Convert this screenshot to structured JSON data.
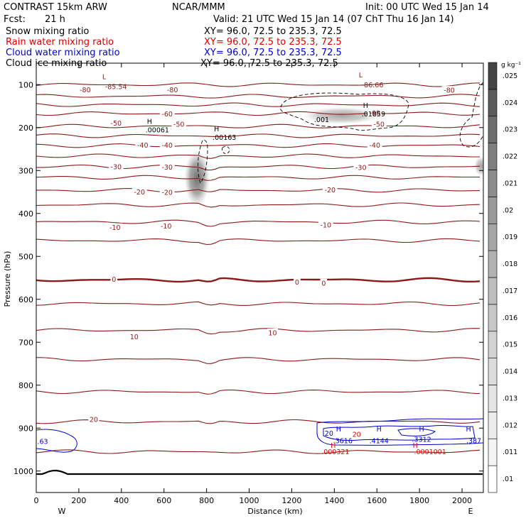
{
  "header": {
    "model": "CONTRAST 15km ARW",
    "org": "NCAR/MMM",
    "init": "Init: 00 UTC Wed 15 Jan 14",
    "fcst_label": "Fcst:",
    "fcst_value": "21 h",
    "valid": "Valid: 21 UTC Wed 15 Jan 14 (07 ChT Thu 16 Jan 14)",
    "fields": [
      {
        "name": "Snow mixing ratio",
        "xy": "XY=  96.0, 72.5 to 235.3, 72.5",
        "color": "#000000"
      },
      {
        "name": "Rain water mixing ratio",
        "xy": "XY=  96.0, 72.5 to 235.3, 72.5",
        "color": "#e00000"
      },
      {
        "name": "Cloud water mixing ratio",
        "xy": "XY=  96.0, 72.5 to 235.3, 72.5",
        "color": "#0000d0"
      },
      {
        "name": "Cloud ice mixing ratio",
        "xy": "XY=  96.0, 72.5 to 235.3, 72.5",
        "color": "#000000"
      }
    ]
  },
  "chart_data": {
    "type": "cross-section contour + shaded",
    "xlabel": "Distance (km)",
    "ylabel": "Pressure (hPa)",
    "xlim": [
      0,
      2100
    ],
    "ylim": [
      1050,
      50
    ],
    "x_ticks": [
      0,
      200,
      400,
      600,
      800,
      1000,
      1200,
      1400,
      1600,
      1800,
      2000
    ],
    "y_ticks": [
      100,
      200,
      300,
      400,
      500,
      600,
      700,
      800,
      900,
      1000
    ],
    "x_end_labels": {
      "left": "W",
      "right": "E"
    },
    "colorbar": {
      "unit": "g kg⁻¹",
      "levels": [
        ".01",
        ".011",
        ".012",
        ".013",
        ".014",
        ".015",
        ".016",
        ".017",
        ".018",
        ".019",
        ".02",
        ".021",
        ".022",
        ".023",
        ".024",
        ".025"
      ],
      "colors": [
        "#ffffff",
        "#f4f4f4",
        "#ececec",
        "#e4e4e4",
        "#dcdcdc",
        "#d2d2d2",
        "#c8c8c8",
        "#bebebe",
        "#b2b2b2",
        "#a6a6a6",
        "#9a9a9a",
        "#8c8c8c",
        "#7e7e7e",
        "#6e6e6e",
        "#5a5a5a",
        "#444444"
      ]
    },
    "temperature_contours": {
      "color": "#8b1a1a",
      "interval_c": 5,
      "isotherms": [
        {
          "t": -85,
          "p": 100
        },
        {
          "t": -80,
          "p": 127
        },
        {
          "t": -70,
          "p": 147
        },
        {
          "t": -60,
          "p": 167
        },
        {
          "t": -50,
          "p": 197
        },
        {
          "t": -45,
          "p": 219
        },
        {
          "t": -40,
          "p": 242
        },
        {
          "t": -35,
          "p": 266
        },
        {
          "t": -30,
          "p": 291
        },
        {
          "t": -25,
          "p": 316
        },
        {
          "t": -20,
          "p": 346
        },
        {
          "t": -15,
          "p": 380
        },
        {
          "t": -10,
          "p": 420
        },
        {
          "t": -5,
          "p": 463
        },
        {
          "t": 0,
          "p": 555
        },
        {
          "t": 5,
          "p": 610
        },
        {
          "t": 10,
          "p": 672
        },
        {
          "t": 15,
          "p": 740
        },
        {
          "t": 20,
          "p": 815
        },
        {
          "t": 25,
          "p": 885
        },
        {
          "t": 30,
          "p": 955
        }
      ],
      "labels": [
        {
          "text": "-80",
          "x": 230,
          "p": 112
        },
        {
          "text": "-80",
          "x": 640,
          "p": 112
        },
        {
          "text": "-80",
          "x": 1940,
          "p": 113
        },
        {
          "text": "-60",
          "x": 615,
          "p": 168
        },
        {
          "text": "-60",
          "x": 1590,
          "p": 166
        },
        {
          "text": "-50",
          "x": 375,
          "p": 190
        },
        {
          "text": "-50",
          "x": 670,
          "p": 192
        },
        {
          "text": "-50",
          "x": 1610,
          "p": 192
        },
        {
          "text": "-40",
          "x": 500,
          "p": 241
        },
        {
          "text": "-40",
          "x": 615,
          "p": 241
        },
        {
          "text": "-40",
          "x": 1590,
          "p": 241
        },
        {
          "text": "-30",
          "x": 375,
          "p": 291
        },
        {
          "text": "-30",
          "x": 615,
          "p": 292
        },
        {
          "text": "-30",
          "x": 1525,
          "p": 293
        },
        {
          "text": "-20",
          "x": 485,
          "p": 350
        },
        {
          "text": "-20",
          "x": 615,
          "p": 351
        },
        {
          "text": "-20",
          "x": 1380,
          "p": 345
        },
        {
          "text": "-10",
          "x": 370,
          "p": 433
        },
        {
          "text": "-10",
          "x": 610,
          "p": 429
        },
        {
          "text": "-10",
          "x": 1360,
          "p": 427
        },
        {
          "text": "0",
          "x": 365,
          "p": 553
        },
        {
          "text": "0",
          "x": 1225,
          "p": 560
        },
        {
          "text": "0",
          "x": 1350,
          "p": 562
        },
        {
          "text": "10",
          "x": 460,
          "p": 687
        },
        {
          "text": "10",
          "x": 1110,
          "p": 678
        },
        {
          "text": "20",
          "x": 270,
          "p": 880
        }
      ],
      "extrema": [
        {
          "kind": "L",
          "x": 350,
          "p": 82,
          "value": "-85.54"
        },
        {
          "kind": "L",
          "x": 1555,
          "p": 78,
          "value": "-86.66"
        }
      ]
    },
    "ice_maxima": [
      {
        "kind": "H",
        "x": 530,
        "p": 196,
        "value": ".00061"
      },
      {
        "kind": "H",
        "x": 845,
        "p": 214,
        "value": ".00163"
      },
      {
        "kind": "H",
        "x": 1545,
        "p": 159,
        "value": ".01859"
      },
      {
        "text": ".001",
        "x": 1305,
        "p": 187
      }
    ],
    "snow_shading": [
      {
        "x": 755,
        "p": 318,
        "rx": 18,
        "rp": 40,
        "intensity": "medium"
      },
      {
        "x": 1435,
        "p": 172,
        "rx": 55,
        "rp": 12,
        "intensity": "light"
      },
      {
        "x": 2090,
        "p": 290,
        "rx": 10,
        "rp": 14,
        "intensity": "light"
      }
    ],
    "cloud_water": {
      "color": "#0000d0",
      "labels": [
        {
          "text": ".63",
          "x": 30,
          "p": 937
        },
        {
          "text": "20",
          "x": 1375,
          "p": 918
        },
        {
          "text": ".3616",
          "x": 1440,
          "p": 935
        },
        {
          "text": ".4144",
          "x": 1610,
          "p": 935
        },
        {
          "text": ".3312",
          "x": 1810,
          "p": 932
        },
        {
          "text": ".387",
          "x": 2055,
          "p": 935
        }
      ],
      "maxima_H": [
        1420,
        1610,
        1810,
        2030
      ]
    },
    "rain_water": {
      "color": "#e00000",
      "labels": [
        {
          "text": "20",
          "x": 1505,
          "p": 920
        },
        {
          "text": ".000321",
          "x": 1405,
          "p": 961
        },
        {
          "text": ".0001001",
          "x": 1850,
          "p": 961
        }
      ],
      "maxima_H": [
        1395,
        1780
      ]
    }
  }
}
